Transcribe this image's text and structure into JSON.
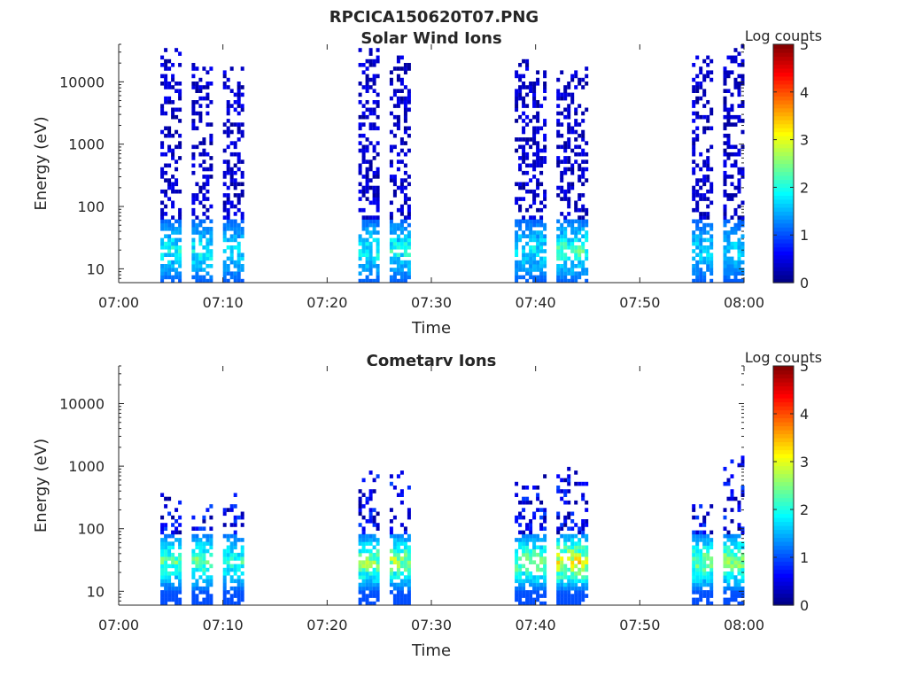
{
  "figure_title": "RPCICA150620T07.PNG",
  "colorbar": {
    "label": "Log counts",
    "ticks": [
      "0",
      "1",
      "2",
      "3",
      "4",
      "5"
    ],
    "range": [
      0,
      5
    ],
    "colormap": "jet"
  },
  "chart_data": [
    {
      "type": "heatmap",
      "title": "Solar Wind Ions",
      "xlabel": "Time",
      "ylabel": "Energy (eV)",
      "xlim": [
        "07:00",
        "08:00"
      ],
      "ylim": [
        6,
        40000
      ],
      "yscale": "log",
      "xticks": [
        "07:00",
        "07:10",
        "07:20",
        "07:30",
        "07:40",
        "07:50",
        "08:00"
      ],
      "yticks": [
        {
          "value": 10,
          "label": "10"
        },
        {
          "value": 100,
          "label": "100"
        },
        {
          "value": 1000,
          "label": "1000"
        },
        {
          "value": 10000,
          "label": "10000"
        }
      ],
      "bursts": [
        {
          "start": "07:04",
          "end": "07:06",
          "max_energy": 30000,
          "peak_log_counts": 2.3
        },
        {
          "start": "07:07",
          "end": "07:09",
          "max_energy": 20000,
          "peak_log_counts": 2.3
        },
        {
          "start": "07:10",
          "end": "07:12",
          "max_energy": 15000,
          "peak_log_counts": 2.0
        },
        {
          "start": "07:23",
          "end": "07:25",
          "max_energy": 35000,
          "peak_log_counts": 2.3
        },
        {
          "start": "07:26",
          "end": "07:28",
          "max_energy": 25000,
          "peak_log_counts": 2.4
        },
        {
          "start": "07:38",
          "end": "07:41",
          "max_energy": 20000,
          "peak_log_counts": 2.2
        },
        {
          "start": "07:42",
          "end": "07:45",
          "max_energy": 15000,
          "peak_log_counts": 2.6
        },
        {
          "start": "07:55",
          "end": "07:57",
          "max_energy": 25000,
          "peak_log_counts": 2.0
        },
        {
          "start": "07:58",
          "end": "08:00",
          "max_energy": 35000,
          "peak_log_counts": 2.0
        }
      ]
    },
    {
      "type": "heatmap",
      "title": "Cometary Ions",
      "xlabel": "Time",
      "ylabel": "Energy (eV)",
      "xlim": [
        "07:00",
        "08:00"
      ],
      "ylim": [
        6,
        40000
      ],
      "yscale": "log",
      "xticks": [
        "07:00",
        "07:10",
        "07:20",
        "07:30",
        "07:40",
        "07:50",
        "08:00"
      ],
      "yticks": [
        {
          "value": 10,
          "label": "10"
        },
        {
          "value": 100,
          "label": "100"
        },
        {
          "value": 1000,
          "label": "1000"
        },
        {
          "value": 10000,
          "label": "10000"
        }
      ],
      "bursts": [
        {
          "start": "07:04",
          "end": "07:06",
          "max_energy": 350,
          "peak_log_counts": 2.8
        },
        {
          "start": "07:07",
          "end": "07:09",
          "max_energy": 200,
          "peak_log_counts": 2.9
        },
        {
          "start": "07:10",
          "end": "07:12",
          "max_energy": 300,
          "peak_log_counts": 2.5
        },
        {
          "start": "07:23",
          "end": "07:25",
          "max_energy": 900,
          "peak_log_counts": 3.1
        },
        {
          "start": "07:26",
          "end": "07:28",
          "max_energy": 700,
          "peak_log_counts": 3.2
        },
        {
          "start": "07:38",
          "end": "07:41",
          "max_energy": 600,
          "peak_log_counts": 3.0
        },
        {
          "start": "07:42",
          "end": "07:45",
          "max_energy": 1000,
          "peak_log_counts": 3.7
        },
        {
          "start": "07:55",
          "end": "07:57",
          "max_energy": 250,
          "peak_log_counts": 3.0
        },
        {
          "start": "07:58",
          "end": "08:00",
          "max_energy": 1800,
          "peak_log_counts": 3.1
        }
      ]
    }
  ]
}
